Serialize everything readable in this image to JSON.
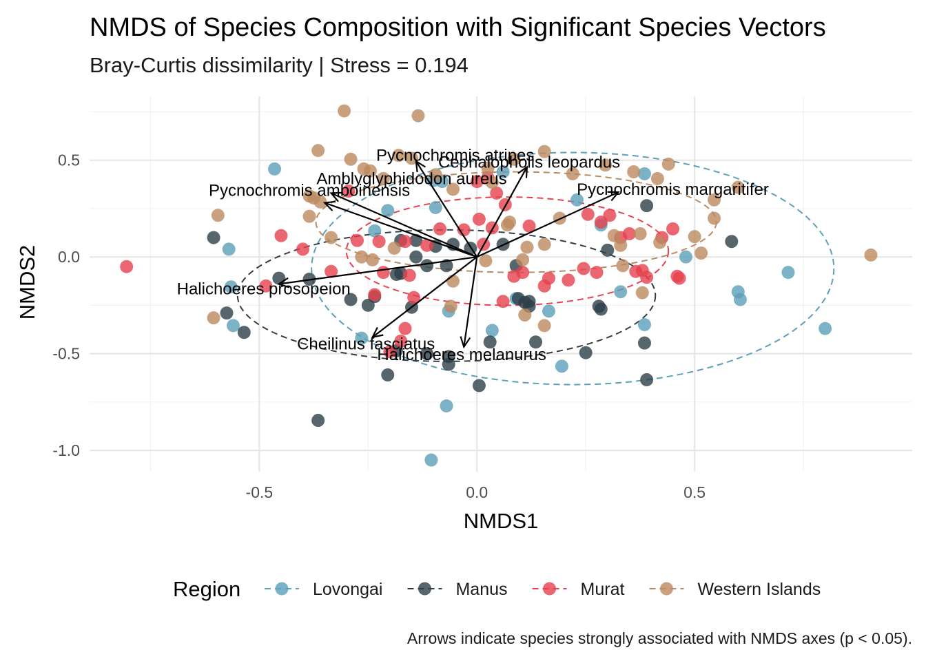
{
  "chart_data": {
    "type": "scatter",
    "title": "NMDS of Species Composition with Significant Species Vectors",
    "subtitle": "Bray-Curtis dissimilarity | Stress = 0.194",
    "xlabel": "NMDS1",
    "ylabel": "NMDS2",
    "caption": "Arrows indicate species strongly associated with NMDS axes (p < 0.05).",
    "xlim": [
      -0.89,
      1.0
    ],
    "ylim": [
      -1.11,
      0.83
    ],
    "x_ticks": [
      {
        "value": -0.5,
        "label": "-0.5"
      },
      {
        "value": 0.0,
        "label": "0.0"
      },
      {
        "value": 0.5,
        "label": "0.5"
      }
    ],
    "y_ticks": [
      {
        "value": 0.5,
        "label": "0.5"
      },
      {
        "value": 0.0,
        "label": "0.0"
      },
      {
        "value": -0.5,
        "label": "-0.5"
      },
      {
        "value": -1.0,
        "label": "-1.0"
      }
    ],
    "grid": true,
    "legend": {
      "title": "Region",
      "placement": "bottom"
    },
    "series": [
      {
        "name": "Lovongai",
        "color": "#5b9fb8",
        "ellipse": {
          "cx": 0.22,
          "cy": -0.06,
          "rx": 0.6,
          "ry": 0.6
        },
        "points": [
          [
            -0.465,
            0.455
          ],
          [
            -0.57,
            0.04
          ],
          [
            -0.565,
            -0.155
          ],
          [
            -0.56,
            -0.355
          ],
          [
            -0.265,
            -0.42
          ],
          [
            -0.235,
            0.135
          ],
          [
            -0.205,
            0.24
          ],
          [
            -0.1,
            0.395
          ],
          [
            -0.095,
            0.255
          ],
          [
            -0.08,
            0.39
          ],
          [
            -0.07,
            -0.77
          ],
          [
            -0.065,
            -0.28
          ],
          [
            -0.105,
            -1.05
          ],
          [
            0.035,
            -0.38
          ],
          [
            0.06,
            0.44
          ],
          [
            0.09,
            -0.215
          ],
          [
            0.165,
            -0.28
          ],
          [
            0.195,
            -0.565
          ],
          [
            0.23,
            0.295
          ],
          [
            0.285,
            0.165
          ],
          [
            0.33,
            -0.18
          ],
          [
            0.385,
            0.43
          ],
          [
            0.385,
            -0.35
          ],
          [
            0.48,
            0.0
          ],
          [
            0.6,
            -0.18
          ],
          [
            0.605,
            -0.22
          ],
          [
            0.715,
            -0.08
          ],
          [
            0.8,
            -0.37
          ]
        ]
      },
      {
        "name": "Manus",
        "color": "#2d3e48",
        "ellipse": {
          "cx": -0.07,
          "cy": -0.2,
          "rx": 0.48,
          "ry": 0.34
        },
        "points": [
          [
            -0.605,
            0.1
          ],
          [
            -0.575,
            -0.29
          ],
          [
            -0.535,
            -0.39
          ],
          [
            -0.455,
            -0.11
          ],
          [
            -0.385,
            -0.115
          ],
          [
            -0.365,
            -0.845
          ],
          [
            -0.29,
            -0.22
          ],
          [
            -0.25,
            -0.25
          ],
          [
            -0.235,
            -0.205
          ],
          [
            -0.205,
            -0.61
          ],
          [
            -0.185,
            -0.485
          ],
          [
            -0.185,
            -0.09
          ],
          [
            -0.175,
            0.085
          ],
          [
            -0.175,
            -0.085
          ],
          [
            -0.15,
            -0.26
          ],
          [
            -0.14,
            0.085
          ],
          [
            -0.14,
            0.0
          ],
          [
            -0.115,
            -0.5
          ],
          [
            -0.115,
            -0.045
          ],
          [
            -0.095,
            0.055
          ],
          [
            -0.07,
            -0.045
          ],
          [
            -0.065,
            -0.515
          ],
          [
            -0.065,
            -0.555
          ],
          [
            -0.055,
            0.065
          ],
          [
            -0.015,
            0.045
          ],
          [
            0.005,
            -0.665
          ],
          [
            0.03,
            -0.44
          ],
          [
            0.06,
            0.065
          ],
          [
            0.09,
            -0.045
          ],
          [
            0.095,
            -0.215
          ],
          [
            0.11,
            -0.235
          ],
          [
            0.12,
            -0.23
          ],
          [
            0.12,
            -0.255
          ],
          [
            0.135,
            -0.44
          ],
          [
            0.25,
            -0.495
          ],
          [
            0.28,
            -0.255
          ],
          [
            0.285,
            -0.27
          ],
          [
            0.3,
            0.035
          ],
          [
            0.385,
            -0.445
          ],
          [
            0.39,
            -0.635
          ],
          [
            0.39,
            0.265
          ],
          [
            0.585,
            0.08
          ]
        ]
      },
      {
        "name": "Murat",
        "color": "#e5414e",
        "ellipse": {
          "cx": 0.07,
          "cy": 0.03,
          "rx": 0.37,
          "ry": 0.28
        },
        "points": [
          [
            -0.805,
            -0.05
          ],
          [
            -0.485,
            -0.15
          ],
          [
            -0.45,
            0.11
          ],
          [
            -0.4,
            0.04
          ],
          [
            -0.335,
            -0.075
          ],
          [
            -0.295,
            0.34
          ],
          [
            -0.275,
            0.085
          ],
          [
            -0.235,
            -0.195
          ],
          [
            -0.225,
            0.08
          ],
          [
            -0.215,
            -0.08
          ],
          [
            -0.2,
            -0.49
          ],
          [
            -0.175,
            -0.435
          ],
          [
            -0.165,
            0.08
          ],
          [
            -0.165,
            -0.37
          ],
          [
            -0.155,
            -0.095
          ],
          [
            -0.145,
            -0.21
          ],
          [
            -0.115,
            0.06
          ],
          [
            -0.085,
            0.145
          ],
          [
            -0.03,
            0.14
          ],
          [
            0.0,
            0.39
          ],
          [
            0.005,
            0.195
          ],
          [
            0.015,
            0.065
          ],
          [
            0.025,
            0.41
          ],
          [
            0.035,
            0.15
          ],
          [
            0.045,
            0.33
          ],
          [
            0.065,
            0.27
          ],
          [
            0.06,
            -0.23
          ],
          [
            0.085,
            -0.1
          ],
          [
            0.105,
            -0.08
          ],
          [
            0.12,
            0.16
          ],
          [
            0.155,
            -0.15
          ],
          [
            0.165,
            -0.11
          ],
          [
            0.21,
            -0.12
          ],
          [
            0.245,
            -0.06
          ],
          [
            0.255,
            0.22
          ],
          [
            0.275,
            -0.08
          ],
          [
            0.285,
            0.18
          ],
          [
            0.305,
            0.215
          ],
          [
            0.33,
            0.1
          ],
          [
            0.35,
            0.12
          ],
          [
            0.365,
            -0.075
          ],
          [
            0.38,
            -0.07
          ],
          [
            0.39,
            -0.105
          ],
          [
            0.425,
            0.1
          ],
          [
            0.45,
            0.145
          ],
          [
            0.46,
            -0.1
          ],
          [
            0.465,
            -0.11
          ]
        ]
      },
      {
        "name": "Western Islands",
        "color": "#bb8a5f",
        "ellipse": {
          "cx": 0.09,
          "cy": 0.18,
          "rx": 0.46,
          "ry": 0.26
        },
        "points": [
          [
            -0.305,
            0.755
          ],
          [
            -0.135,
            0.73
          ],
          [
            -0.365,
            0.55
          ],
          [
            -0.29,
            0.505
          ],
          [
            -0.26,
            0.455
          ],
          [
            -0.245,
            0.445
          ],
          [
            -0.215,
            0.405
          ],
          [
            -0.18,
            0.525
          ],
          [
            -0.15,
            0.51
          ],
          [
            -0.095,
            0.425
          ],
          [
            -0.055,
            0.35
          ],
          [
            0.035,
            0.385
          ],
          [
            0.025,
            0.46
          ],
          [
            0.085,
            0.505
          ],
          [
            0.155,
            0.545
          ],
          [
            0.22,
            0.43
          ],
          [
            0.295,
            0.475
          ],
          [
            0.36,
            0.44
          ],
          [
            0.44,
            0.48
          ],
          [
            0.415,
            0.405
          ],
          [
            -0.385,
            0.315
          ],
          [
            -0.375,
            0.305
          ],
          [
            -0.36,
            0.285
          ],
          [
            -0.595,
            0.215
          ],
          [
            -0.385,
            0.21
          ],
          [
            -0.335,
            0.1
          ],
          [
            -0.265,
            0.0
          ],
          [
            -0.24,
            -0.015
          ],
          [
            -0.19,
            0.045
          ],
          [
            0.07,
            0.165
          ],
          [
            0.075,
            0.18
          ],
          [
            0.105,
            -0.015
          ],
          [
            0.115,
            0.05
          ],
          [
            0.155,
            0.065
          ],
          [
            0.19,
            0.2
          ],
          [
            0.315,
            0.11
          ],
          [
            0.33,
            0.06
          ],
          [
            0.335,
            -0.045
          ],
          [
            0.375,
            0.12
          ],
          [
            0.42,
            0.075
          ],
          [
            0.5,
            0.105
          ],
          [
            0.515,
            0.02
          ],
          [
            0.545,
            0.295
          ],
          [
            0.545,
            0.2
          ],
          [
            0.6,
            0.36
          ],
          [
            -0.06,
            -0.255
          ],
          [
            -0.055,
            -0.125
          ],
          [
            0.02,
            -0.02
          ],
          [
            0.11,
            -0.3
          ],
          [
            0.155,
            -0.355
          ],
          [
            0.38,
            -0.185
          ],
          [
            -0.605,
            -0.315
          ],
          [
            0.905,
            0.01
          ]
        ]
      }
    ],
    "vectors": [
      {
        "label": "Pycnochromis atripes",
        "x": -0.14,
        "y": 0.495,
        "label_x": -0.05,
        "label_y": 0.525
      },
      {
        "label": "Cephalopholis leopardus",
        "x": 0.115,
        "y": 0.465,
        "label_x": 0.12,
        "label_y": 0.49
      },
      {
        "label": "Amblyglyphidodon aureus",
        "x": -0.335,
        "y": 0.33,
        "label_x": -0.15,
        "label_y": 0.405
      },
      {
        "label": "Pycnochromis amboinensis",
        "x": -0.35,
        "y": 0.28,
        "label_x": -0.385,
        "label_y": 0.345
      },
      {
        "label": "Pycnochromis margaritifer",
        "x": 0.325,
        "y": 0.335,
        "label_x": 0.45,
        "label_y": 0.35
      },
      {
        "label": "Halichoeres prosopeion",
        "x": -0.455,
        "y": -0.14,
        "label_x": -0.49,
        "label_y": -0.165
      },
      {
        "label": "Cheilinus fasciatus",
        "x": -0.24,
        "y": -0.415,
        "label_x": -0.255,
        "label_y": -0.45
      },
      {
        "label": "Halichoeres melanurus",
        "x": -0.03,
        "y": -0.465,
        "label_x": -0.035,
        "label_y": -0.505
      }
    ]
  }
}
